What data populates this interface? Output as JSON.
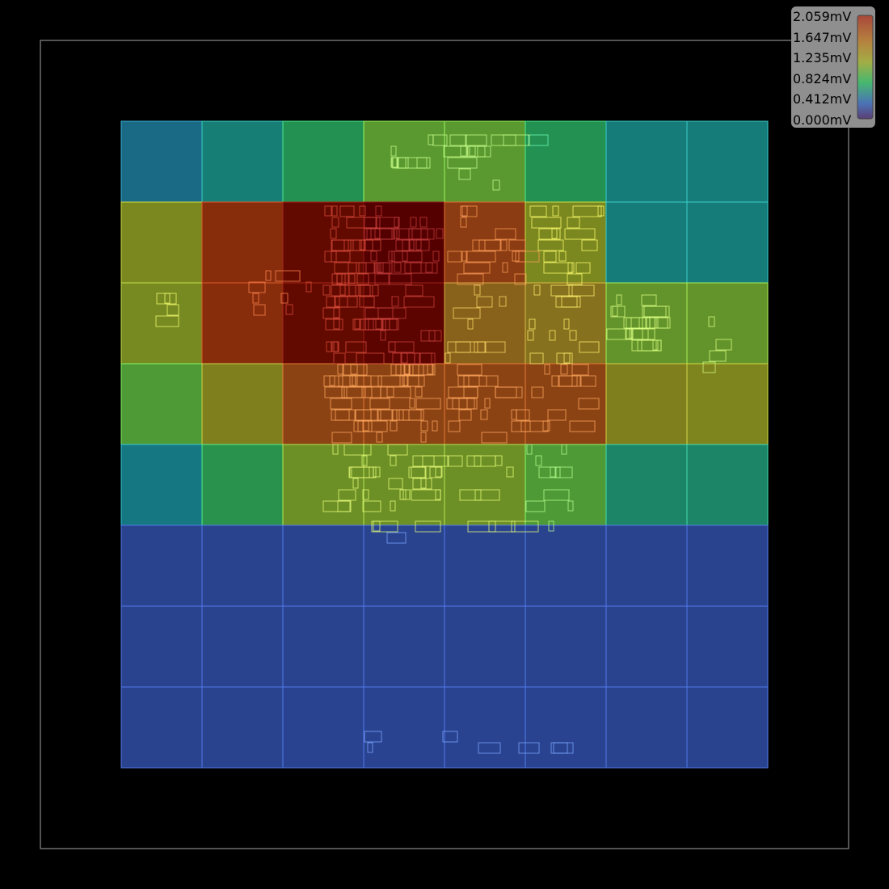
{
  "chart_data": {
    "type": "heatmap",
    "title": "",
    "xlabel": "",
    "ylabel": "",
    "unit": "mV",
    "grid": true,
    "value_range": [
      0.0,
      2.059
    ],
    "colorbar": {
      "placement": "top-right",
      "tick_labels": [
        "2.059mV",
        "1.647mV",
        "1.235mV",
        "0.824mV",
        "0.412mV",
        "0.000mV"
      ],
      "colors": [
        "#6a2f2f",
        "#b05a3a",
        "#a8a84a",
        "#3fbf6f",
        "#4a6fb0",
        "#4a4a7a"
      ]
    },
    "rows": 8,
    "cols": 8,
    "values": [
      [
        0.49,
        0.62,
        0.82,
        1.05,
        1.05,
        0.82,
        0.6,
        0.6
      ],
      [
        1.22,
        1.72,
        1.92,
        2.059,
        1.62,
        1.22,
        0.6,
        0.6
      ],
      [
        1.2,
        1.72,
        1.92,
        2.0,
        1.48,
        1.42,
        1.1,
        1.1
      ],
      [
        1.0,
        1.3,
        1.58,
        1.58,
        1.58,
        1.58,
        1.3,
        1.25
      ],
      [
        0.55,
        0.85,
        1.15,
        1.15,
        1.15,
        1.0,
        0.7,
        0.7
      ],
      [
        0.18,
        0.18,
        0.18,
        0.18,
        0.18,
        0.18,
        0.18,
        0.18
      ],
      [
        0.18,
        0.18,
        0.18,
        0.18,
        0.18,
        0.18,
        0.18,
        0.18
      ],
      [
        0.18,
        0.18,
        0.21,
        0.21,
        0.21,
        0.21,
        0.18,
        0.18
      ]
    ]
  }
}
